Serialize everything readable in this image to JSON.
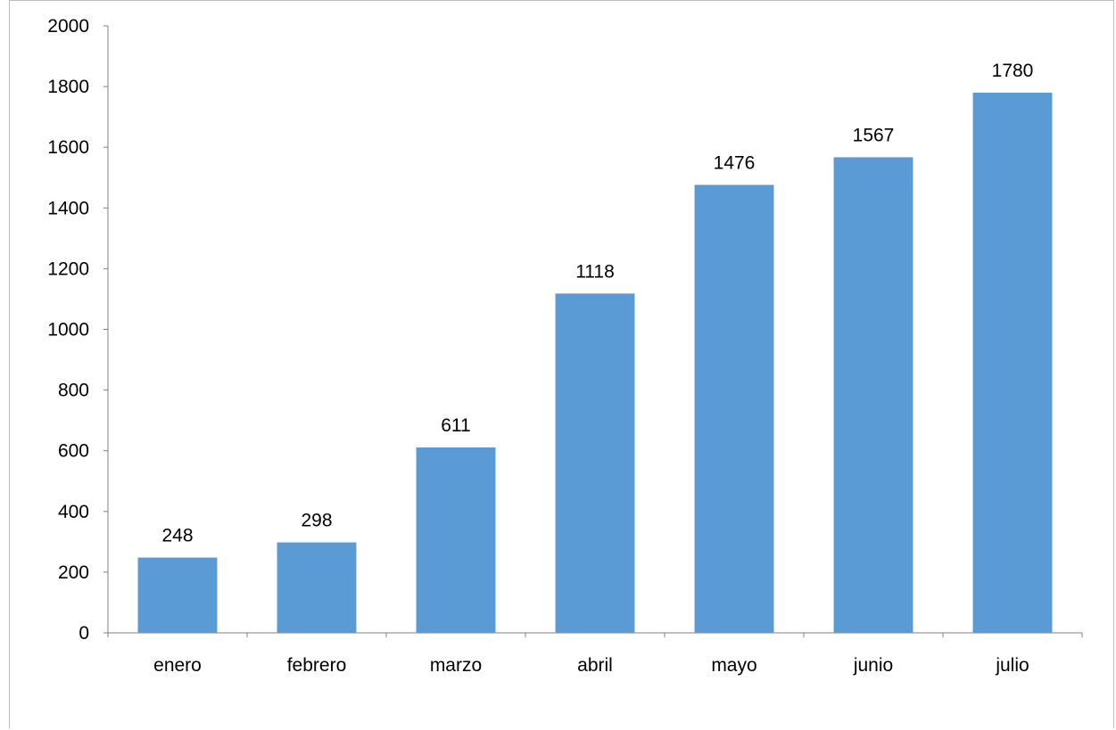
{
  "chart_data": {
    "type": "bar",
    "title": "",
    "xlabel": "",
    "ylabel": "",
    "categories": [
      "enero",
      "febrero",
      "marzo",
      "abril",
      "mayo",
      "junio",
      "julio"
    ],
    "values": [
      248,
      298,
      611,
      1118,
      1476,
      1567,
      1780
    ],
    "data_labels": [
      "248",
      "298",
      "611",
      "1118",
      "1476",
      "1567",
      "1780"
    ],
    "yticks": [
      0,
      200,
      400,
      600,
      800,
      1000,
      1200,
      1400,
      1600,
      1800,
      2000
    ],
    "ytick_labels": [
      "0",
      "200",
      "400",
      "600",
      "800",
      "1000",
      "1200",
      "1400",
      "1600",
      "1800",
      "2000"
    ],
    "ylim": [
      0,
      2000
    ],
    "grid": false,
    "legend": "none",
    "bar_color": "#5b9bd5",
    "axis_color": "#808080"
  }
}
